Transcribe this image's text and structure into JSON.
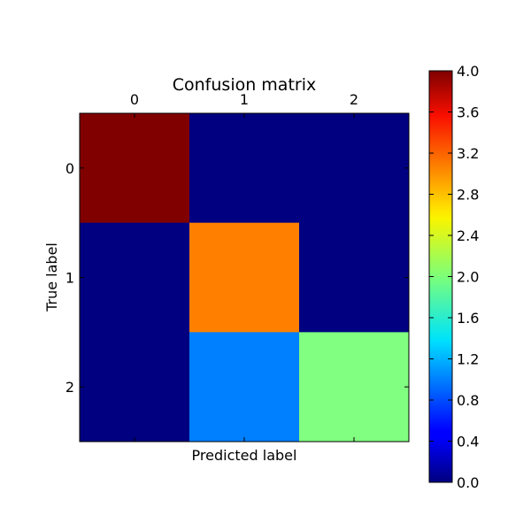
{
  "chart_data": {
    "type": "heatmap",
    "title": "Confusion matrix",
    "xlabel": "Predicted label",
    "ylabel": "True label",
    "x_tick_labels": [
      "0",
      "1",
      "2"
    ],
    "y_tick_labels": [
      "0",
      "1",
      "2"
    ],
    "x_ticks_position": "top",
    "matrix": [
      [
        4,
        0,
        0
      ],
      [
        0,
        3,
        0
      ],
      [
        0,
        1,
        2
      ]
    ],
    "colormap": "jet",
    "color_range": [
      0.0,
      4.0
    ],
    "colorbar": {
      "position": "right",
      "tick_labels": [
        "0.0",
        "0.4",
        "0.8",
        "1.2",
        "1.6",
        "2.0",
        "2.4",
        "2.8",
        "3.2",
        "3.6",
        "4.0"
      ],
      "tick_values": [
        0.0,
        0.4,
        0.8,
        1.2,
        1.6,
        2.0,
        2.4,
        2.8,
        3.2,
        3.6,
        4.0
      ]
    },
    "grid": false,
    "legend": "none"
  }
}
